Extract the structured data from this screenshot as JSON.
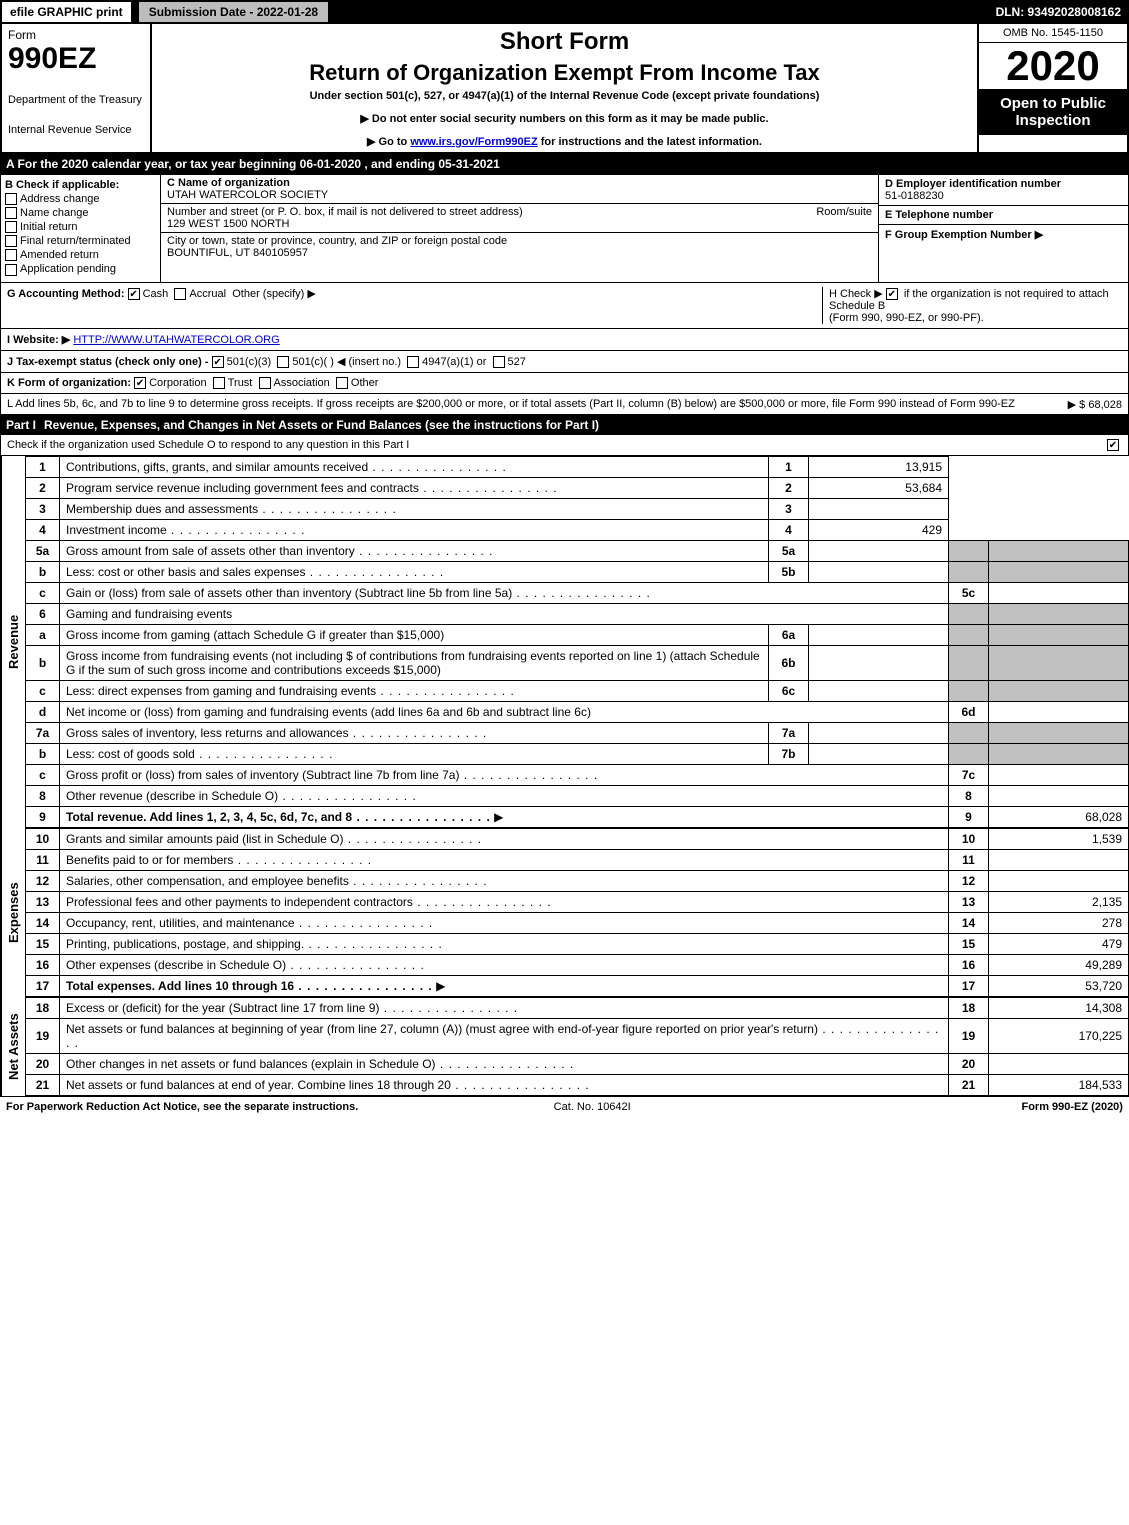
{
  "top_bar": {
    "efile": "efile GRAPHIC print",
    "submission_date_label": "Submission Date - 2022-01-28",
    "dln": "DLN: 93492028008162"
  },
  "header": {
    "form_word": "Form",
    "form_number": "990EZ",
    "dept1": "Department of the Treasury",
    "dept2": "Internal Revenue Service",
    "short_form": "Short Form",
    "return_title": "Return of Organization Exempt From Income Tax",
    "under_section": "Under section 501(c), 527, or 4947(a)(1) of the Internal Revenue Code (except private foundations)",
    "notice1": "▶ Do not enter social security numbers on this form as it may be made public.",
    "notice2_pre": "▶ Go to ",
    "notice2_link": "www.irs.gov/Form990EZ",
    "notice2_post": " for instructions and the latest information.",
    "omb": "OMB No. 1545-1150",
    "year": "2020",
    "open_to": "Open to Public Inspection"
  },
  "tax_year_bar": "A For the 2020 calendar year, or tax year beginning 06-01-2020 , and ending 05-31-2021",
  "section_b": {
    "title": "B Check if applicable:",
    "opts": [
      "Address change",
      "Name change",
      "Initial return",
      "Final return/terminated",
      "Amended return",
      "Application pending"
    ]
  },
  "section_c": {
    "name_label": "C Name of organization",
    "name": "UTAH WATERCOLOR SOCIETY",
    "street_label": "Number and street (or P. O. box, if mail is not delivered to street address)",
    "room_suite": "Room/suite",
    "street": "129 WEST 1500 NORTH",
    "city_label": "City or town, state or province, country, and ZIP or foreign postal code",
    "city": "BOUNTIFUL, UT 840105957"
  },
  "section_d": {
    "ein_label": "D Employer identification number",
    "ein": "51-0188230",
    "tel_label": "E Telephone number",
    "group_label": "F Group Exemption Number ▶"
  },
  "section_g": {
    "label": "G Accounting Method:",
    "cash": "Cash",
    "accrual": "Accrual",
    "other": "Other (specify) ▶"
  },
  "section_h": {
    "text1": "H Check ▶",
    "text2": "if the organization is not required to attach Schedule B",
    "text3": "(Form 990, 990-EZ, or 990-PF)."
  },
  "section_i": {
    "label": "I Website: ▶",
    "url": "HTTP://WWW.UTAHWATERCOLOR.ORG"
  },
  "section_j": {
    "label": "J Tax-exempt status (check only one) - ",
    "o1": "501(c)(3)",
    "o2": "501(c)(  ) ◀ (insert no.)",
    "o3": "4947(a)(1) or",
    "o4": "527"
  },
  "section_k": {
    "label": "K Form of organization:",
    "o1": "Corporation",
    "o2": "Trust",
    "o3": "Association",
    "o4": "Other"
  },
  "section_l": {
    "text": "L Add lines 5b, 6c, and 7b to line 9 to determine gross receipts. If gross receipts are $200,000 or more, or if total assets (Part II, column (B) below) are $500,000 or more, file Form 990 instead of Form 990-EZ",
    "amount": "▶ $ 68,028"
  },
  "part1": {
    "label": "Part I",
    "title": "Revenue, Expenses, and Changes in Net Assets or Fund Balances (see the instructions for Part I)",
    "subtitle": "Check if the organization used Schedule O to respond to any question in this Part I"
  },
  "revenue_label": "Revenue",
  "expenses_label": "Expenses",
  "netassets_label": "Net Assets",
  "lines": {
    "l1": {
      "num": "1",
      "desc": "Contributions, gifts, grants, and similar amounts received",
      "code": "1",
      "amt": "13,915"
    },
    "l2": {
      "num": "2",
      "desc": "Program service revenue including government fees and contracts",
      "code": "2",
      "amt": "53,684"
    },
    "l3": {
      "num": "3",
      "desc": "Membership dues and assessments",
      "code": "3",
      "amt": ""
    },
    "l4": {
      "num": "4",
      "desc": "Investment income",
      "code": "4",
      "amt": "429"
    },
    "l5a": {
      "num": "5a",
      "desc": "Gross amount from sale of assets other than inventory",
      "mini": "5a"
    },
    "l5b": {
      "num": "b",
      "desc": "Less: cost or other basis and sales expenses",
      "mini": "5b"
    },
    "l5c": {
      "num": "c",
      "desc": "Gain or (loss) from sale of assets other than inventory (Subtract line 5b from line 5a)",
      "code": "5c",
      "amt": ""
    },
    "l6": {
      "num": "6",
      "desc": "Gaming and fundraising events"
    },
    "l6a": {
      "num": "a",
      "desc": "Gross income from gaming (attach Schedule G if greater than $15,000)",
      "mini": "6a"
    },
    "l6b": {
      "num": "b",
      "desc": "Gross income from fundraising events (not including $               of contributions from fundraising events reported on line 1) (attach Schedule G if the sum of such gross income and contributions exceeds $15,000)",
      "mini": "6b"
    },
    "l6c": {
      "num": "c",
      "desc": "Less: direct expenses from gaming and fundraising events",
      "mini": "6c"
    },
    "l6d": {
      "num": "d",
      "desc": "Net income or (loss) from gaming and fundraising events (add lines 6a and 6b and subtract line 6c)",
      "code": "6d",
      "amt": ""
    },
    "l7a": {
      "num": "7a",
      "desc": "Gross sales of inventory, less returns and allowances",
      "mini": "7a"
    },
    "l7b": {
      "num": "b",
      "desc": "Less: cost of goods sold",
      "mini": "7b"
    },
    "l7c": {
      "num": "c",
      "desc": "Gross profit or (loss) from sales of inventory (Subtract line 7b from line 7a)",
      "code": "7c",
      "amt": ""
    },
    "l8": {
      "num": "8",
      "desc": "Other revenue (describe in Schedule O)",
      "code": "8",
      "amt": ""
    },
    "l9": {
      "num": "9",
      "desc": "Total revenue. Add lines 1, 2, 3, 4, 5c, 6d, 7c, and 8",
      "code": "9",
      "amt": "68,028"
    },
    "l10": {
      "num": "10",
      "desc": "Grants and similar amounts paid (list in Schedule O)",
      "code": "10",
      "amt": "1,539"
    },
    "l11": {
      "num": "11",
      "desc": "Benefits paid to or for members",
      "code": "11",
      "amt": ""
    },
    "l12": {
      "num": "12",
      "desc": "Salaries, other compensation, and employee benefits",
      "code": "12",
      "amt": ""
    },
    "l13": {
      "num": "13",
      "desc": "Professional fees and other payments to independent contractors",
      "code": "13",
      "amt": "2,135"
    },
    "l14": {
      "num": "14",
      "desc": "Occupancy, rent, utilities, and maintenance",
      "code": "14",
      "amt": "278"
    },
    "l15": {
      "num": "15",
      "desc": "Printing, publications, postage, and shipping.",
      "code": "15",
      "amt": "479"
    },
    "l16": {
      "num": "16",
      "desc": "Other expenses (describe in Schedule O)",
      "code": "16",
      "amt": "49,289"
    },
    "l17": {
      "num": "17",
      "desc": "Total expenses. Add lines 10 through 16",
      "code": "17",
      "amt": "53,720"
    },
    "l18": {
      "num": "18",
      "desc": "Excess or (deficit) for the year (Subtract line 17 from line 9)",
      "code": "18",
      "amt": "14,308"
    },
    "l19": {
      "num": "19",
      "desc": "Net assets or fund balances at beginning of year (from line 27, column (A)) (must agree with end-of-year figure reported on prior year's return)",
      "code": "19",
      "amt": "170,225"
    },
    "l20": {
      "num": "20",
      "desc": "Other changes in net assets or fund balances (explain in Schedule O)",
      "code": "20",
      "amt": ""
    },
    "l21": {
      "num": "21",
      "desc": "Net assets or fund balances at end of year. Combine lines 18 through 20",
      "code": "21",
      "amt": "184,533"
    }
  },
  "footer": {
    "paperwork": "For Paperwork Reduction Act Notice, see the separate instructions.",
    "cat": "Cat. No. 10642I",
    "formver": "Form 990-EZ (2020)"
  },
  "colors": {
    "black": "#000000",
    "white": "#ffffff",
    "grey": "#bdbdbd",
    "shade": "#c0c0c0",
    "link": "#0000cc"
  }
}
